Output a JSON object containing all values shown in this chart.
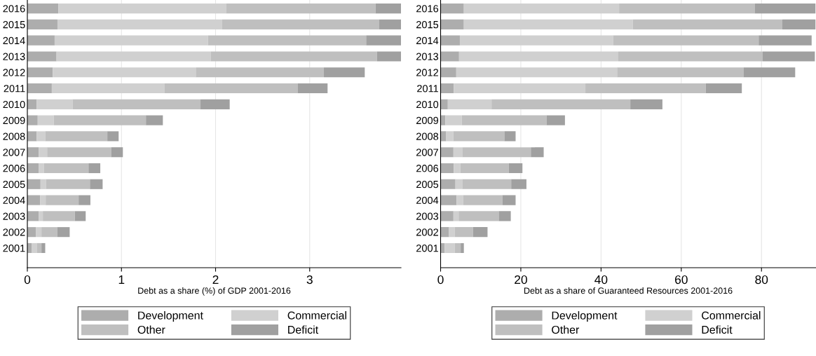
{
  "chart_data": [
    {
      "type": "bar",
      "orientation": "horizontal",
      "stacked": true,
      "xlabel": "Debt as a share (%) of GDP 2001-2016",
      "legend": "bottom",
      "grid": "x",
      "categories": [
        "2016",
        "2015",
        "2014",
        "2013",
        "2012",
        "2011",
        "2010",
        "2009",
        "2008",
        "2007",
        "2006",
        "2005",
        "2004",
        "2003",
        "2002",
        "2001"
      ],
      "xlim": [
        0,
        3.97
      ],
      "xticks": [
        0,
        1,
        2,
        3
      ],
      "series": [
        {
          "name": "Development",
          "color": "#adadad",
          "values": [
            0.33,
            0.32,
            0.29,
            0.31,
            0.27,
            0.26,
            0.1,
            0.11,
            0.1,
            0.12,
            0.12,
            0.14,
            0.135,
            0.12,
            0.09,
            0.045
          ]
        },
        {
          "name": "Commercial",
          "color": "#d0d0d0",
          "values": [
            1.785,
            1.75,
            1.63,
            1.64,
            1.52,
            1.2,
            0.38,
            0.17,
            0.09,
            0.09,
            0.055,
            0.06,
            0.06,
            0.045,
            0.06,
            0.055
          ]
        },
        {
          "name": "Other",
          "color": "#bfbfbf",
          "values": [
            1.585,
            1.665,
            1.68,
            1.765,
            1.36,
            1.415,
            1.36,
            0.98,
            0.66,
            0.68,
            0.475,
            0.465,
            0.35,
            0.34,
            0.17,
            0.05
          ]
        },
        {
          "name": "Deficit",
          "color": "#a0a0a0",
          "values": [
            0.27,
            0.235,
            0.37,
            0.255,
            0.435,
            0.315,
            0.31,
            0.18,
            0.12,
            0.125,
            0.125,
            0.135,
            0.125,
            0.115,
            0.13,
            0.04
          ]
        }
      ]
    },
    {
      "type": "bar",
      "orientation": "horizontal",
      "stacked": true,
      "xlabel": "Debt as a share of Guaranteed Resources 2001-2016",
      "legend": "bottom",
      "grid": "x",
      "categories": [
        "2016",
        "2015",
        "2014",
        "2013",
        "2012",
        "2011",
        "2010",
        "2009",
        "2008",
        "2007",
        "2006",
        "2005",
        "2004",
        "2003",
        "2002",
        "2001"
      ],
      "xlim": [
        0,
        93.5
      ],
      "xticks": [
        0,
        20,
        40,
        60,
        80
      ],
      "series": [
        {
          "name": "Development",
          "color": "#adadad",
          "values": [
            5.8,
            5.8,
            4.8,
            4.6,
            3.9,
            3.3,
            1.8,
            1.2,
            1.4,
            3.2,
            3.3,
            3.7,
            4.0,
            3.2,
            2.1,
            1.0
          ]
        },
        {
          "name": "Commercial",
          "color": "#d0d0d0",
          "values": [
            38.7,
            42.1,
            38.2,
            39.7,
            40.1,
            32.8,
            10.9,
            4.1,
            1.8,
            2.2,
            1.6,
            1.7,
            1.6,
            1.3,
            1.4,
            2.5
          ]
        },
        {
          "name": "Other",
          "color": "#bfbfbf",
          "values": [
            33.8,
            37.3,
            36.3,
            36.0,
            31.5,
            30.0,
            34.6,
            21.1,
            12.7,
            17.1,
            12.1,
            12.2,
            9.8,
            10.0,
            4.6,
            1.5
          ]
        },
        {
          "name": "Deficit",
          "color": "#a0a0a0",
          "values": [
            15.2,
            8.3,
            13.2,
            13.0,
            12.9,
            9.0,
            8.0,
            4.6,
            2.8,
            3.2,
            3.4,
            3.8,
            3.3,
            3.0,
            3.6,
            0.8
          ]
        }
      ]
    }
  ]
}
